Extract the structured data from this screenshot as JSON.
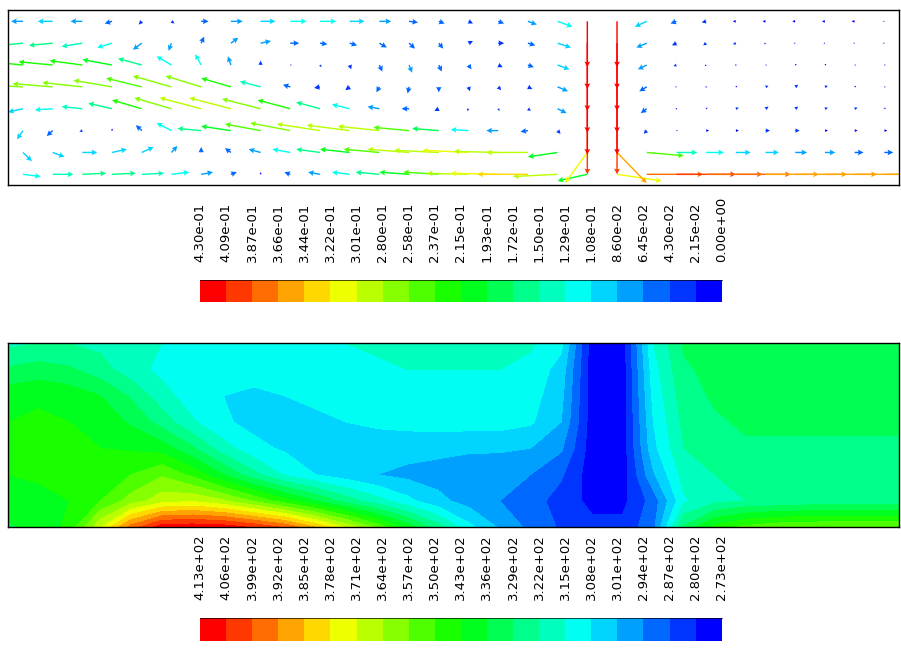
{
  "chart_data": [
    {
      "type": "quiver",
      "tick_labels": false,
      "x": [
        0,
        1,
        2,
        3,
        4,
        5,
        6,
        7,
        8,
        9,
        10,
        11,
        12,
        13,
        14,
        15,
        16,
        17,
        18,
        19,
        20,
        21,
        22,
        23,
        24,
        25,
        26,
        27,
        28,
        29
      ],
      "y": [
        0,
        1,
        2,
        3,
        4,
        5,
        6,
        7
      ],
      "xlim": [
        -0.5,
        29.5
      ],
      "ylim": [
        -0.5,
        7.5
      ],
      "u": [
        [
          0.12,
          0.14,
          0.16,
          0.16,
          0.15,
          0.12,
          0.08,
          0.04,
          0,
          -0.04,
          -0.08,
          -0.12,
          -0.16,
          -0.2,
          -0.24,
          -0.28,
          -0.32,
          -0.34,
          -0.3,
          -0.2,
          0.3,
          0.38,
          0.4,
          0.38,
          0.37,
          0.36,
          0.35,
          0.35,
          0.35,
          0.35
        ],
        [
          0.06,
          0.08,
          0.1,
          0.1,
          0.08,
          0.04,
          0,
          -0.04,
          -0.08,
          -0.12,
          -0.16,
          -0.2,
          -0.24,
          -0.28,
          -0.3,
          -0.31,
          -0.3,
          -0.28,
          -0.2,
          -0.15,
          0.2,
          0.25,
          0.14,
          0.12,
          0.1,
          0.09,
          0.08,
          0.07,
          0.06,
          0.06
        ],
        [
          -0.04,
          -0.04,
          -0.02,
          0,
          -0.04,
          -0.1,
          -0.16,
          -0.2,
          -0.24,
          -0.27,
          -0.29,
          -0.29,
          -0.28,
          -0.24,
          -0.18,
          -0.12,
          -0.08,
          -0.05,
          0.02,
          0,
          0,
          -0.02,
          0.01,
          0.02,
          0.02,
          0.03,
          0.03,
          0.02,
          0.02,
          0.02
        ],
        [
          -0.1,
          -0.12,
          -0.14,
          -0.16,
          -0.2,
          -0.25,
          -0.28,
          -0.28,
          -0.26,
          -0.22,
          -0.16,
          -0.12,
          -0.08,
          -0.05,
          -0.03,
          -0.01,
          0.01,
          0.02,
          0.06,
          0,
          0,
          -0.04,
          0,
          0.01,
          0.02,
          0.02,
          0.02,
          0.02,
          0.02,
          0.01
        ],
        [
          -0.26,
          -0.27,
          -0.27,
          -0.26,
          -0.24,
          -0.26,
          -0.24,
          -0.2,
          -0.14,
          -0.05,
          -0.04,
          -0.03,
          -0.02,
          -0.01,
          0,
          0.01,
          0.02,
          0.03,
          0.07,
          0,
          0,
          -0.05,
          -0.01,
          0,
          0.01,
          0.02,
          0.02,
          0.02,
          0.01,
          0.01
        ],
        [
          -0.22,
          -0.23,
          -0.22,
          -0.2,
          -0.16,
          -0.1,
          -0.04,
          -0.02,
          0,
          0.01,
          0.01,
          0.01,
          0.02,
          0.02,
          0.02,
          0.02,
          0.03,
          0.04,
          0.08,
          0,
          0,
          -0.06,
          -0.02,
          -0.01,
          0,
          0.01,
          0.01,
          0.01,
          0.01,
          0.01
        ],
        [
          -0.15,
          -0.16,
          -0.14,
          -0.1,
          -0.06,
          -0.02,
          0.02,
          0.05,
          0.07,
          0.06,
          0.05,
          0.05,
          0.05,
          0.04,
          0.03,
          0.03,
          0.04,
          0.05,
          0.09,
          0,
          0,
          -0.07,
          -0.03,
          -0.02,
          -0.02,
          -0.01,
          -0.01,
          -0.01,
          -0.01,
          -0.01
        ],
        [
          -0.08,
          -0.1,
          -0.08,
          -0.05,
          -0.02,
          0.02,
          0.05,
          0.08,
          0.1,
          0.11,
          0.11,
          0.1,
          0.08,
          0.06,
          0.04,
          0.03,
          0.04,
          0.06,
          0.1,
          0,
          0,
          -0.08,
          -0.04,
          -0.03,
          -0.02,
          -0.02,
          -0.02,
          -0.02,
          -0.02,
          -0.01
        ]
      ],
      "v": [
        [
          -0.02,
          0,
          0.01,
          0.01,
          0.01,
          0.02,
          0.02,
          0.02,
          0.02,
          0.02,
          0.02,
          0.02,
          0.02,
          0.02,
          0.02,
          0.01,
          0.01,
          0,
          -0.02,
          -0.06,
          -0.06,
          0,
          0,
          0,
          0,
          0,
          0,
          0,
          0,
          0
        ],
        [
          -0.08,
          -0.04,
          0,
          0.03,
          0.05,
          0.06,
          0.05,
          0.04,
          0.03,
          0.03,
          0.03,
          0.03,
          0.03,
          0.03,
          0.02,
          0.02,
          0.01,
          0,
          -0.04,
          -0.28,
          -0.28,
          -0.03,
          0,
          0,
          0,
          0,
          0,
          0,
          0,
          0
        ],
        [
          -0.08,
          -0.05,
          -0.01,
          0.02,
          0.05,
          0.07,
          0.02,
          0.04,
          0.06,
          0.07,
          0.06,
          0.05,
          0.04,
          0.03,
          0.02,
          0.01,
          0,
          -0.01,
          -0.03,
          -0.4,
          -0.4,
          -0.03,
          0,
          0,
          0,
          0,
          0,
          0,
          0,
          0
        ],
        [
          -0.03,
          -0.01,
          0.02,
          0.05,
          0.08,
          0.1,
          0.1,
          0.1,
          0.09,
          0.08,
          0.06,
          0.04,
          0.02,
          0,
          -0.02,
          -0.02,
          -0.02,
          -0.02,
          -0.04,
          -0.42,
          -0.42,
          -0.04,
          0.01,
          0.01,
          0.01,
          0.02,
          0.02,
          0.01,
          0.01,
          0.01
        ],
        [
          0.02,
          0.03,
          0.04,
          0.06,
          0.08,
          0.1,
          0.1,
          0.08,
          0.05,
          0.02,
          -0.01,
          -0.03,
          -0.05,
          -0.06,
          -0.05,
          -0.04,
          -0.03,
          -0.02,
          -0.04,
          -0.42,
          -0.42,
          -0.04,
          0,
          0.01,
          0.01,
          0.01,
          0.02,
          0.01,
          0.01,
          0
        ],
        [
          0.03,
          0.03,
          0.04,
          0.05,
          0.06,
          0.08,
          0.1,
          0.08,
          0.04,
          0,
          -0.02,
          -0.04,
          -0.06,
          -0.07,
          -0.06,
          -0.04,
          -0.02,
          -0.02,
          -0.04,
          -0.42,
          -0.42,
          -0.04,
          -0.01,
          -0.01,
          0,
          0,
          0.01,
          0.01,
          0,
          0
        ],
        [
          -0.02,
          -0.02,
          -0.03,
          -0.04,
          -0.06,
          -0.07,
          0.06,
          0.05,
          0.02,
          0,
          -0.01,
          -0.02,
          -0.04,
          -0.05,
          -0.05,
          0.02,
          0,
          -0.02,
          -0.04,
          -0.42,
          -0.42,
          -0.04,
          -0.02,
          -0.02,
          -0.01,
          -0.01,
          0,
          0,
          0,
          0
        ],
        [
          0,
          0,
          0,
          -0.02,
          -0.03,
          -0.02,
          0,
          0,
          0,
          0,
          0,
          0,
          0,
          -0.01,
          -0.02,
          -0.02,
          -0.02,
          -0.03,
          -0.05,
          -0.42,
          -0.42,
          -0.05,
          -0.02,
          -0.01,
          0,
          0,
          0,
          0,
          0,
          0
        ]
      ],
      "colorbar_range": [
        0,
        0.43
      ],
      "colorbar_ticks": [
        {
          "value": 0.43,
          "label": "4.30e-01"
        },
        {
          "value": 0.4085,
          "label": "4.09e-01"
        },
        {
          "value": 0.387,
          "label": "3.87e-01"
        },
        {
          "value": 0.3655,
          "label": "3.66e-01"
        },
        {
          "value": 0.344,
          "label": "3.44e-01"
        },
        {
          "value": 0.3225,
          "label": "3.22e-01"
        },
        {
          "value": 0.301,
          "label": "3.01e-01"
        },
        {
          "value": 0.2795,
          "label": "2.80e-01"
        },
        {
          "value": 0.258,
          "label": "2.58e-01"
        },
        {
          "value": 0.2365,
          "label": "2.37e-01"
        },
        {
          "value": 0.215,
          "label": "2.15e-01"
        },
        {
          "value": 0.1935,
          "label": "1.93e-01"
        },
        {
          "value": 0.172,
          "label": "1.72e-01"
        },
        {
          "value": 0.1505,
          "label": "1.50e-01"
        },
        {
          "value": 0.129,
          "label": "1.29e-01"
        },
        {
          "value": 0.1075,
          "label": "1.08e-01"
        },
        {
          "value": 0.086,
          "label": "8.60e-02"
        },
        {
          "value": 0.0645,
          "label": "6.45e-02"
        },
        {
          "value": 0.043,
          "label": "4.30e-02"
        },
        {
          "value": 0.0215,
          "label": "2.15e-02"
        },
        {
          "value": 0,
          "label": "0.00e+00"
        }
      ]
    },
    {
      "type": "contour",
      "tick_labels": false,
      "x": [
        0,
        1,
        2,
        3,
        4,
        5,
        6,
        7,
        8,
        9,
        10,
        11,
        12,
        13,
        14,
        15,
        16,
        17,
        18,
        19,
        20,
        21,
        22,
        23,
        24,
        25,
        26,
        27,
        28,
        29
      ],
      "y": [
        0,
        1,
        2,
        3,
        4,
        5,
        6,
        7
      ],
      "xlim": [
        0,
        29
      ],
      "ylim": [
        0,
        7
      ],
      "cells": [
        [
          335,
          338,
          345,
          370,
          395,
          410,
          411,
          410,
          405,
          398,
          385,
          370,
          355,
          340,
          325,
          310,
          300,
          292,
          286,
          282,
          282,
          292,
          330,
          345,
          352,
          355,
          356,
          357,
          357,
          357
        ],
        [
          340,
          341,
          343,
          350,
          360,
          368,
          370,
          365,
          356,
          346,
          336,
          326,
          318,
          310,
          303,
          298,
          294,
          290,
          284,
          278,
          278,
          290,
          314,
          320,
          322,
          323,
          324,
          324,
          324,
          324
        ],
        [
          343,
          344,
          344,
          345,
          350,
          356,
          348,
          336,
          324,
          314,
          308,
          304,
          301,
          299,
          298,
          297,
          296,
          294,
          288,
          276,
          276,
          300,
          318,
          322,
          324,
          324,
          325,
          325,
          325,
          325
        ],
        [
          344,
          345,
          344,
          343,
          342,
          340,
          330,
          318,
          310,
          307,
          306,
          306,
          305,
          304,
          303,
          302,
          302,
          301,
          295,
          276,
          276,
          306,
          322,
          326,
          328,
          328,
          328,
          328,
          328,
          328
        ],
        [
          343,
          344,
          343,
          340,
          335,
          326,
          316,
          309,
          306,
          306,
          307,
          308,
          309,
          310,
          311,
          311,
          311,
          309,
          301,
          276,
          276,
          308,
          324,
          328,
          330,
          330,
          330,
          330,
          330,
          330
        ],
        [
          340,
          342,
          340,
          336,
          328,
          318,
          311,
          308,
          307,
          308,
          309,
          310,
          311,
          312,
          313,
          313,
          313,
          311,
          303,
          276,
          276,
          310,
          326,
          330,
          331,
          331,
          331,
          331,
          331,
          331
        ],
        [
          330,
          332,
          330,
          325,
          318,
          313,
          310,
          309,
          310,
          311,
          312,
          313,
          314,
          315,
          315,
          315,
          315,
          313,
          305,
          276,
          276,
          312,
          328,
          331,
          332,
          332,
          332,
          332,
          332,
          332
        ],
        [
          320,
          322,
          322,
          320,
          318,
          315,
          313,
          312,
          313,
          314,
          315,
          315,
          316,
          316,
          316,
          316,
          316,
          316,
          310,
          276,
          276,
          315,
          330,
          332,
          333,
          333,
          333,
          333,
          333,
          333
        ]
      ],
      "colorbar_range": [
        273,
        413
      ],
      "colorbar_ticks": [
        {
          "value": 413,
          "label": "4.13e+02"
        },
        {
          "value": 406,
          "label": "4.06e+02"
        },
        {
          "value": 399,
          "label": "3.99e+02"
        },
        {
          "value": 392,
          "label": "3.92e+02"
        },
        {
          "value": 385,
          "label": "3.85e+02"
        },
        {
          "value": 378,
          "label": "3.78e+02"
        },
        {
          "value": 371,
          "label": "3.71e+02"
        },
        {
          "value": 364,
          "label": "3.64e+02"
        },
        {
          "value": 357,
          "label": "3.57e+02"
        },
        {
          "value": 350,
          "label": "3.50e+02"
        },
        {
          "value": 343,
          "label": "3.43e+02"
        },
        {
          "value": 336,
          "label": "3.36e+02"
        },
        {
          "value": 329,
          "label": "3.29e+02"
        },
        {
          "value": 322,
          "label": "3.22e+02"
        },
        {
          "value": 315,
          "label": "3.15e+02"
        },
        {
          "value": 308,
          "label": "3.08e+02"
        },
        {
          "value": 301,
          "label": "3.01e+02"
        },
        {
          "value": 294,
          "label": "2.94e+02"
        },
        {
          "value": 287,
          "label": "2.87e+02"
        },
        {
          "value": 280,
          "label": "2.80e+02"
        },
        {
          "value": 273,
          "label": "2.73e+02"
        }
      ]
    }
  ]
}
